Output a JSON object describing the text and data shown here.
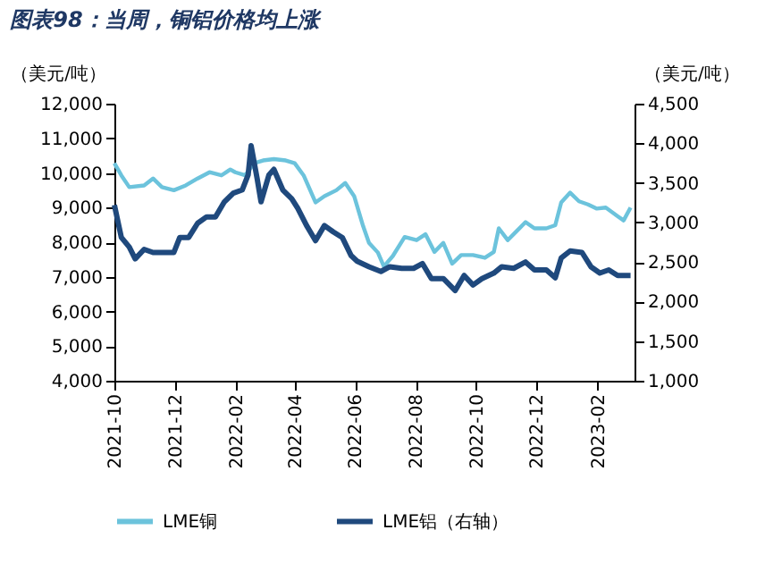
{
  "chart_data": {
    "type": "line",
    "title": "图表98：当周，铜铝价格均上涨",
    "ylabel": "（美元/吨）",
    "y2label": "（美元/吨）",
    "xlim": [
      "2021-10-01",
      "2023-03-10"
    ],
    "xticks": [
      "2021-10",
      "2021-12",
      "2022-02",
      "2022-04",
      "2022-06",
      "2022-08",
      "2022-10",
      "2022-12",
      "2023-02"
    ],
    "ylim": [
      4000,
      12000
    ],
    "yticks": [
      {
        "value": 4000,
        "label": "4,000"
      },
      {
        "value": 5000,
        "label": "5,000"
      },
      {
        "value": 6000,
        "label": "6,000"
      },
      {
        "value": 7000,
        "label": "7,000"
      },
      {
        "value": 8000,
        "label": "8,000"
      },
      {
        "value": 9000,
        "label": "9,000"
      },
      {
        "value": 10000,
        "label": "10,000"
      },
      {
        "value": 11000,
        "label": "11,000"
      },
      {
        "value": 12000,
        "label": "12,000"
      }
    ],
    "y2lim": [
      1000,
      4500
    ],
    "y2ticks": [
      {
        "value": 1000,
        "label": "1,000"
      },
      {
        "value": 1500,
        "label": "1,500"
      },
      {
        "value": 2000,
        "label": "2,000"
      },
      {
        "value": 2500,
        "label": "2,500"
      },
      {
        "value": 3000,
        "label": "3,000"
      },
      {
        "value": 3500,
        "label": "3,500"
      },
      {
        "value": 4000,
        "label": "4,000"
      },
      {
        "value": 4500,
        "label": "4,500"
      }
    ],
    "grid": false,
    "legend": "bottom",
    "line_style": "solid",
    "marker": "none",
    "series": [
      {
        "name": "LME铜",
        "color": "#6cc3dc",
        "x": [
          "2021-10-01",
          "2021-10-08",
          "2021-10-16",
          "2021-10-31",
          "2021-11-09",
          "2021-11-18",
          "2021-11-30",
          "2021-12-12",
          "2021-12-24",
          "2022-01-05",
          "2022-01-17",
          "2022-01-26",
          "2022-01-31",
          "2022-02-10",
          "2022-02-19",
          "2022-02-28",
          "2022-03-11",
          "2022-03-23",
          "2022-04-01",
          "2022-04-10",
          "2022-04-22",
          "2022-05-01",
          "2022-05-13",
          "2022-05-22",
          "2022-05-31",
          "2022-06-09",
          "2022-06-15",
          "2022-06-24",
          "2022-06-30",
          "2022-07-09",
          "2022-07-21",
          "2022-08-02",
          "2022-08-11",
          "2022-08-20",
          "2022-08-29",
          "2022-09-07",
          "2022-09-16",
          "2022-09-28",
          "2022-10-10",
          "2022-10-19",
          "2022-10-24",
          "2022-11-02",
          "2022-11-11",
          "2022-11-20",
          "2022-11-29",
          "2022-12-11",
          "2022-12-20",
          "2022-12-26",
          "2023-01-04",
          "2023-01-13",
          "2023-01-22",
          "2023-01-31",
          "2023-02-09",
          "2023-02-21",
          "2023-02-27",
          "2023-03-06"
        ],
        "values": [
          10280,
          9930,
          9590,
          9640,
          9840,
          9590,
          9500,
          9640,
          9840,
          10020,
          9930,
          10100,
          10020,
          9930,
          10280,
          10360,
          10400,
          10360,
          10280,
          9930,
          9150,
          9330,
          9500,
          9710,
          9330,
          8470,
          7980,
          7700,
          7300,
          7600,
          8150,
          8060,
          8230,
          7720,
          7980,
          7380,
          7630,
          7630,
          7550,
          7720,
          8400,
          8060,
          8320,
          8580,
          8400,
          8400,
          8490,
          9150,
          9430,
          9180,
          9090,
          8970,
          9000,
          8750,
          8630,
          9000
        ]
      },
      {
        "name": "LME铝（右轴）",
        "color": "#1f497d",
        "axis": "y2",
        "x": [
          "2021-10-01",
          "2021-10-08",
          "2021-10-16",
          "2021-10-22",
          "2021-10-31",
          "2021-11-09",
          "2021-11-18",
          "2021-11-30",
          "2021-12-06",
          "2021-12-15",
          "2021-12-24",
          "2022-01-02",
          "2022-01-11",
          "2022-01-20",
          "2022-01-29",
          "2022-02-07",
          "2022-02-13",
          "2022-02-16",
          "2022-02-22",
          "2022-02-26",
          "2022-03-06",
          "2022-03-11",
          "2022-03-20",
          "2022-03-29",
          "2022-04-04",
          "2022-04-13",
          "2022-04-22",
          "2022-05-01",
          "2022-05-10",
          "2022-05-19",
          "2022-05-28",
          "2022-06-03",
          "2022-06-15",
          "2022-06-27",
          "2022-07-06",
          "2022-07-18",
          "2022-07-30",
          "2022-08-08",
          "2022-08-17",
          "2022-08-29",
          "2022-09-10",
          "2022-09-19",
          "2022-09-28",
          "2022-10-07",
          "2022-10-19",
          "2022-10-27",
          "2022-11-08",
          "2022-11-20",
          "2022-11-29",
          "2022-12-11",
          "2022-12-20",
          "2022-12-26",
          "2023-01-04",
          "2023-01-16",
          "2023-01-25",
          "2023-02-03",
          "2023-02-12",
          "2023-02-21",
          "2023-03-06"
        ],
        "values": [
          3220,
          2810,
          2690,
          2540,
          2660,
          2620,
          2620,
          2620,
          2810,
          2810,
          2990,
          3070,
          3070,
          3260,
          3370,
          3410,
          3600,
          3970,
          3560,
          3260,
          3600,
          3670,
          3410,
          3300,
          3180,
          2960,
          2770,
          2960,
          2880,
          2810,
          2580,
          2510,
          2440,
          2380,
          2440,
          2420,
          2420,
          2480,
          2290,
          2290,
          2140,
          2330,
          2210,
          2290,
          2360,
          2440,
          2420,
          2500,
          2400,
          2400,
          2300,
          2550,
          2640,
          2620,
          2440,
          2360,
          2400,
          2330,
          2330
        ]
      }
    ]
  }
}
